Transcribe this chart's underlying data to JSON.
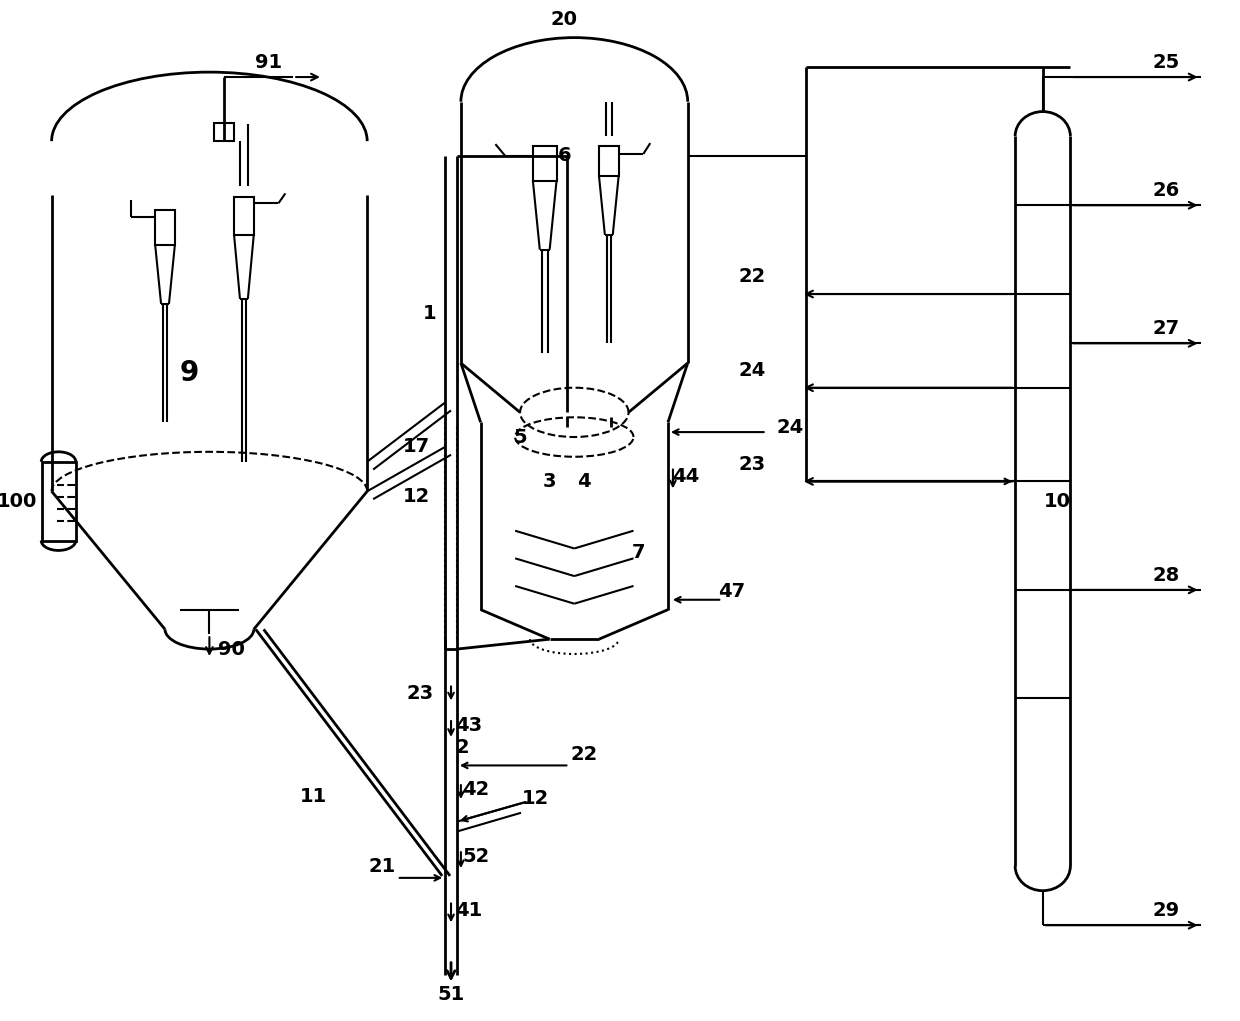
{
  "bg_color": "#ffffff",
  "line_color": "#000000",
  "lw": 1.5,
  "lw2": 2.0,
  "fs": 14
}
